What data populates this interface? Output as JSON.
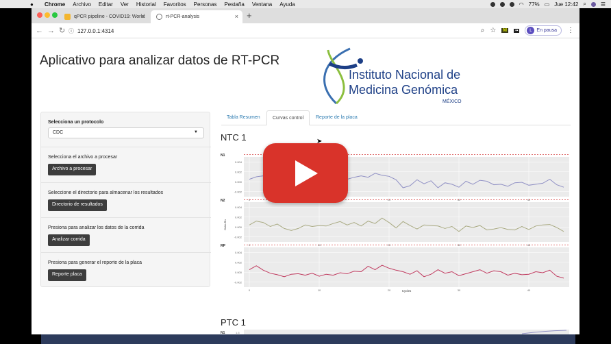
{
  "menubar": {
    "app": "Chrome",
    "items": [
      "Archivo",
      "Editar",
      "Ver",
      "Historial",
      "Favoritos",
      "Personas",
      "Pestaña",
      "Ventana",
      "Ayuda"
    ],
    "battery": "77%",
    "clock": "Jue 12:42"
  },
  "browser": {
    "tabs": [
      {
        "label": "qPCR pipeline - COVID19: World",
        "close": "×"
      },
      {
        "label": "rt-PCR-analysis",
        "close": "×"
      }
    ],
    "new_tab": "+",
    "url": "127.0.0.1:4314",
    "profile_initial": "L",
    "profile_status": "En pausa"
  },
  "app": {
    "title": "Aplicativo para analizar datos de RT-PCR",
    "logo": {
      "line1": "Instituto Nacional de",
      "line2": "Medicina Genómica",
      "country": "MÉXICO",
      "dna_text": "CTACCTCAACTCCAAGCATCACCACCAA"
    },
    "sidebar": {
      "protocol_label": "Selecciona un protocolo",
      "protocol_value": "CDC",
      "file_label": "Selecciona el archivo a procesar",
      "file_button": "Archivo a procesar",
      "dir_label": "Seleccione el directorio para almacenar los resultados",
      "dir_button": "Directorio de resultados",
      "analyze_label": "Presiona para analizar los datos de la corrida",
      "analyze_button": "Analizar corrida",
      "report_label": "Presiona para generar el reporte de la placa",
      "report_button": "Reporte placa"
    },
    "tabs": [
      "Tabla Resumen",
      "Curvas control",
      "Reporte de la placa"
    ],
    "active_tab": "Curvas control",
    "section1_title": "NTC 1",
    "section2_title": "PTC 1",
    "section2_first_panel": "N1",
    "section2_first_tick": "1.5"
  },
  "chart_data": {
    "type": "line",
    "title": "NTC 1",
    "xlabel": "Cycles",
    "ylabel": "Delta Rn",
    "xticks": [
      0,
      10,
      20,
      30,
      40
    ],
    "yticks": [
      "0.004",
      "0.002",
      "0.000",
      "-0.002"
    ],
    "ylim": [
      -0.003,
      0.005
    ],
    "threshold": 0.0055,
    "panels": [
      {
        "name": "N1",
        "color": "#8f8fc4",
        "values": [
          0.0005,
          0.001,
          0.0012,
          0.0008,
          0.0003,
          0.0011,
          0.0009,
          0.0002,
          0.0006,
          0.0008,
          0.0004,
          0.001,
          0.0007,
          0.0003,
          0.0005,
          0.0009,
          0.0012,
          0.0009,
          0.0017,
          0.0013,
          0.0011,
          0.0004,
          -0.0012,
          -0.0008,
          0.0004,
          -0.0004,
          0.0002,
          -0.0012,
          -0.0002,
          -0.0005,
          -0.0011,
          0.0001,
          -0.0005,
          0.0003,
          0.0001,
          -0.0006,
          -0.0005,
          -0.0009,
          -0.0002,
          -0.0001,
          -0.0007,
          -0.0005,
          -0.0003,
          0.0005,
          -0.0006,
          -0.0011
        ]
      },
      {
        "name": "N2",
        "color": "#a9aa82",
        "values": [
          0.0004,
          0.0012,
          0.0009,
          0.0001,
          0.0006,
          -0.0003,
          -0.0007,
          -0.0003,
          0.0004,
          0.0001,
          0.0003,
          0.0002,
          0.0007,
          0.0011,
          0.0004,
          0.0009,
          0.0002,
          0.0012,
          0.0007,
          0.0018,
          0.0009,
          -0.0002,
          0.0011,
          0.0003,
          -0.0004,
          0.0004,
          0.0003,
          0.0002,
          -0.0003,
          0.0001,
          -0.0009,
          0.0002,
          -0.0001,
          0.0003,
          -0.0006,
          -0.0004,
          -0.0001,
          -0.0005,
          -0.0006,
          0.0001,
          -0.0005,
          0.0002,
          0.0004,
          0.0005,
          -0.0001,
          -0.0009
        ]
      },
      {
        "name": "RP",
        "color": "#c0395e",
        "values": [
          0.0005,
          0.0013,
          0.0004,
          -0.0002,
          -0.0005,
          -0.0009,
          -0.0004,
          -0.0003,
          -0.0006,
          -0.0002,
          -0.0008,
          -0.0004,
          -0.0006,
          -0.0001,
          -0.0003,
          0.0002,
          0.0001,
          0.0012,
          0.0005,
          0.0014,
          0.0008,
          0.0004,
          0.0001,
          -0.0004,
          0.0003,
          -0.0009,
          -0.0004,
          0.0005,
          -0.0002,
          0.0001,
          -0.0007,
          -0.0003,
          0.0001,
          0.0005,
          -0.0002,
          0.0003,
          0.0001,
          -0.0006,
          -0.0002,
          -0.0005,
          -0.0004,
          0.0001,
          -0.0001,
          0.0004,
          -0.0008,
          -0.0012
        ]
      }
    ]
  },
  "overlay": {
    "youtube_play": "play-button"
  }
}
